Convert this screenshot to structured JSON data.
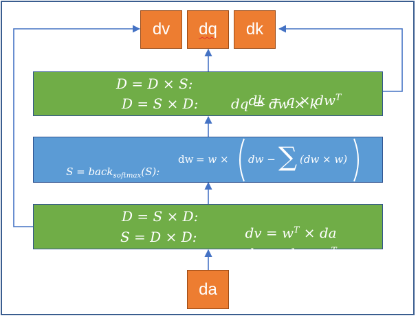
{
  "outputs": {
    "dv": "dv",
    "dq": "dq",
    "dk": "dk"
  },
  "input": {
    "da": "da"
  },
  "top_block": {
    "line1_lhs": "D = D × S:",
    "line1_rhs_pre": "dk = q × dw",
    "line1_rhs_sup": "T",
    "line2_lhs": "D = S × D:",
    "line2_rhs": "dq = dw × k"
  },
  "middle_block": {
    "lhs_pre": "S = back",
    "lhs_sub": "softmax",
    "lhs_post": "(S):",
    "dw_label": "dw",
    "rhs_pre": "= w ×",
    "inner": "dw −",
    "sum_symbol": "∑",
    "sum_arg": "(dw × w)"
  },
  "bottom_block": {
    "line1_lhs": "D = S × D:",
    "line1_rhs_pre": "dv = w",
    "line1_rhs_sup": "T",
    "line1_rhs_post": "× da",
    "line2_lhs": "S = D × D:",
    "line2_rhs_pre": "dw = da × v",
    "line2_rhs_sup": "T"
  },
  "colors": {
    "orange": "#ed7d31",
    "green": "#70ad47",
    "blue": "#5b9bd5",
    "arrow": "#4472c4",
    "frame": "#3a5d8f"
  }
}
